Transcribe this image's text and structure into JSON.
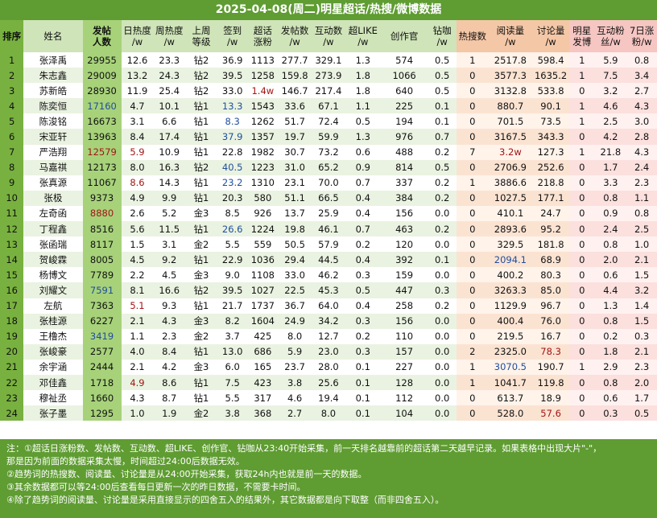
{
  "title": "2025-04-08(周二)明星超话/热搜/微博数据",
  "headers": [
    "排序",
    "姓名",
    "发帖\n人数",
    "日热度\n/w",
    "周热度\n/w",
    "上周\n等级",
    "签到\n/w",
    "超话\n涨粉",
    "发帖数\n/w",
    "互动数\n/w",
    "超LIKE\n/w",
    "创作官",
    "钻咖\n/w",
    "热搜数",
    "阅读量\n/w",
    "讨论量\n/w",
    "明星\n发博",
    "互动粉\n丝/w",
    "7日涨\n粉/w"
  ],
  "header_classes": [
    "h-rank",
    "h-name",
    "h-posts",
    "h-std",
    "h-std",
    "h-std",
    "h-std",
    "h-std",
    "h-std",
    "h-std",
    "h-std",
    "h-std",
    "h-std",
    "h-hot",
    "h-hot",
    "h-hot",
    "h-star",
    "h-star",
    "h-star"
  ],
  "column_widths": [
    28,
    70,
    46,
    38,
    38,
    38,
    36,
    36,
    40,
    40,
    42,
    56,
    34,
    38,
    52,
    44,
    30,
    38,
    36
  ],
  "rows": [
    [
      "1",
      "张泽禹",
      "29955",
      "12.6",
      "23.3",
      "钻2",
      "36.9",
      "1113",
      "277.7",
      "329.1",
      "1.3",
      "574",
      "0.5",
      "1",
      "2517.8",
      "598.4",
      "1",
      "5.9",
      "0.8"
    ],
    [
      "2",
      "朱志鑫",
      "29009",
      "13.2",
      "24.3",
      "钻2",
      "39.5",
      "1258",
      "159.8",
      "273.9",
      "1.8",
      "1066",
      "0.5",
      "0",
      "3577.3",
      "1635.2",
      "1",
      "7.5",
      "3.4"
    ],
    [
      "3",
      "苏新皓",
      "28930",
      "11.9",
      "25.4",
      "钻2",
      "33.0",
      "1.4w",
      "146.7",
      "217.4",
      "1.8",
      "640",
      "0.5",
      "0",
      "3132.8",
      "533.8",
      "0",
      "3.2",
      "2.7"
    ],
    [
      "4",
      "陈奕恒",
      "17160",
      "4.7",
      "10.1",
      "钻1",
      "13.3",
      "1543",
      "33.6",
      "67.1",
      "1.1",
      "225",
      "0.1",
      "0",
      "880.7",
      "90.1",
      "1",
      "4.6",
      "4.3"
    ],
    [
      "5",
      "陈浚铭",
      "16673",
      "3.1",
      "6.6",
      "钻1",
      "8.3",
      "1262",
      "51.7",
      "72.4",
      "0.5",
      "194",
      "0.1",
      "0",
      "701.5",
      "73.5",
      "1",
      "2.5",
      "3.0"
    ],
    [
      "6",
      "宋亚轩",
      "13963",
      "8.4",
      "17.4",
      "钻1",
      "37.9",
      "1357",
      "19.7",
      "59.9",
      "1.3",
      "976",
      "0.7",
      "0",
      "3167.5",
      "343.3",
      "0",
      "4.2",
      "2.8"
    ],
    [
      "7",
      "严浩翔",
      "12579",
      "5.9",
      "10.9",
      "钻1",
      "22.8",
      "1982",
      "30.7",
      "73.2",
      "0.6",
      "488",
      "0.2",
      "7",
      "3.2w",
      "127.3",
      "1",
      "21.8",
      "4.3"
    ],
    [
      "8",
      "马嘉祺",
      "12173",
      "8.0",
      "16.3",
      "钻2",
      "40.5",
      "1223",
      "31.0",
      "65.2",
      "0.9",
      "814",
      "0.5",
      "0",
      "2706.9",
      "252.6",
      "0",
      "1.7",
      "2.4"
    ],
    [
      "9",
      "张真源",
      "11067",
      "8.6",
      "14.3",
      "钻1",
      "23.2",
      "1310",
      "23.1",
      "70.0",
      "0.7",
      "337",
      "0.2",
      "1",
      "3886.6",
      "218.8",
      "0",
      "3.3",
      "2.3"
    ],
    [
      "10",
      "张极",
      "9373",
      "4.9",
      "9.9",
      "钻1",
      "20.3",
      "580",
      "51.1",
      "66.5",
      "0.4",
      "384",
      "0.2",
      "0",
      "1027.5",
      "177.1",
      "0",
      "0.8",
      "1.1"
    ],
    [
      "11",
      "左奇函",
      "8880",
      "2.6",
      "5.2",
      "金3",
      "8.5",
      "926",
      "13.7",
      "25.9",
      "0.4",
      "156",
      "0.0",
      "0",
      "410.1",
      "24.7",
      "0",
      "0.9",
      "0.8"
    ],
    [
      "12",
      "丁程鑫",
      "8516",
      "5.6",
      "11.5",
      "钻1",
      "26.6",
      "1224",
      "19.8",
      "46.1",
      "0.7",
      "463",
      "0.2",
      "0",
      "2893.6",
      "95.2",
      "0",
      "2.4",
      "2.5"
    ],
    [
      "13",
      "张函瑞",
      "8117",
      "1.5",
      "3.1",
      "金2",
      "5.5",
      "559",
      "50.5",
      "57.9",
      "0.2",
      "120",
      "0.0",
      "0",
      "329.5",
      "181.8",
      "0",
      "0.8",
      "1.0"
    ],
    [
      "14",
      "贺峻霖",
      "8005",
      "4.5",
      "9.2",
      "钻1",
      "22.9",
      "1036",
      "29.4",
      "44.5",
      "0.4",
      "392",
      "0.1",
      "0",
      "2094.1",
      "68.9",
      "0",
      "2.0",
      "2.1"
    ],
    [
      "15",
      "杨博文",
      "7789",
      "2.2",
      "4.5",
      "金3",
      "9.0",
      "1108",
      "33.0",
      "46.2",
      "0.3",
      "159",
      "0.0",
      "0",
      "400.2",
      "80.3",
      "0",
      "0.6",
      "1.5"
    ],
    [
      "16",
      "刘耀文",
      "7591",
      "8.1",
      "16.6",
      "钻2",
      "39.5",
      "1027",
      "22.5",
      "45.3",
      "0.5",
      "447",
      "0.3",
      "0",
      "3263.3",
      "85.0",
      "0",
      "4.4",
      "3.2"
    ],
    [
      "17",
      "左航",
      "7363",
      "5.1",
      "9.3",
      "钻1",
      "21.7",
      "1737",
      "36.7",
      "64.0",
      "0.4",
      "258",
      "0.2",
      "0",
      "1129.9",
      "96.7",
      "0",
      "1.3",
      "1.4"
    ],
    [
      "18",
      "张桂源",
      "6227",
      "2.1",
      "4.3",
      "金3",
      "8.2",
      "1604",
      "24.9",
      "34.2",
      "0.3",
      "156",
      "0.0",
      "0",
      "400.4",
      "76.0",
      "0",
      "0.8",
      "1.5"
    ],
    [
      "19",
      "王橹杰",
      "3419",
      "1.1",
      "2.3",
      "金2",
      "3.7",
      "425",
      "8.0",
      "12.7",
      "0.2",
      "110",
      "0.0",
      "0",
      "219.5",
      "16.7",
      "0",
      "0.2",
      "0.3"
    ],
    [
      "20",
      "张峻豪",
      "2577",
      "4.0",
      "8.4",
      "钻1",
      "13.0",
      "686",
      "5.9",
      "23.0",
      "0.3",
      "157",
      "0.0",
      "2",
      "2325.0",
      "78.3",
      "0",
      "1.8",
      "2.1"
    ],
    [
      "21",
      "余宇涵",
      "2444",
      "2.1",
      "4.2",
      "金3",
      "6.0",
      "165",
      "23.7",
      "28.0",
      "0.1",
      "227",
      "0.0",
      "1",
      "3070.5",
      "190.7",
      "1",
      "2.9",
      "2.3"
    ],
    [
      "22",
      "邓佳鑫",
      "1718",
      "4.9",
      "8.6",
      "钻1",
      "7.5",
      "423",
      "3.8",
      "25.6",
      "0.1",
      "128",
      "0.0",
      "1",
      "1041.7",
      "119.8",
      "0",
      "0.8",
      "2.0"
    ],
    [
      "23",
      "穆祉丞",
      "1660",
      "4.3",
      "8.7",
      "钻1",
      "5.5",
      "317",
      "4.6",
      "19.4",
      "0.1",
      "112",
      "0.0",
      "0",
      "613.7",
      "18.9",
      "0",
      "0.6",
      "1.7"
    ],
    [
      "24",
      "张子墨",
      "1295",
      "1.0",
      "1.9",
      "金2",
      "3.8",
      "368",
      "2.7",
      "8.0",
      "0.1",
      "104",
      "0.0",
      "0",
      "528.0",
      "57.6",
      "0",
      "0.3",
      "0.5"
    ]
  ],
  "highlight_blue": [
    [
      "4",
      2
    ],
    [
      "4",
      6
    ],
    [
      "6",
      6
    ],
    [
      "8",
      6
    ],
    [
      "9",
      6
    ],
    [
      "12",
      6
    ],
    [
      "16",
      2
    ],
    [
      "19",
      2
    ],
    [
      "1",
      6
    ],
    [
      "2",
      6
    ],
    [
      "3",
      6
    ],
    [
      "5",
      6
    ],
    [
      "14",
      14
    ],
    [
      "21",
      14
    ]
  ],
  "highlight_red": [
    [
      "3",
      7
    ],
    [
      "7",
      2
    ],
    [
      "7",
      3
    ],
    [
      "7",
      14
    ],
    [
      "9",
      3
    ],
    [
      "11",
      2
    ],
    [
      "17",
      3
    ],
    [
      "20",
      15
    ],
    [
      "22",
      3
    ],
    [
      "24",
      15
    ]
  ],
  "notes": [
    "注：①超话日涨粉数、发帖数、互动数、超LIKE、创作官、钻咖从23:40开始采集，前一天排名越靠前的超话第二天越早记录。如果表格中出现大片\"-\"，",
    "    那是因为前面的数据采集太慢，时间超过24:00后数据无效。",
    "    ②趋势词的热搜数、阅读量、讨论量是从24:00开始采集，获取24h内也就是前一天的数据。",
    "    ③其余数据都可以等24:00后查看每日更新一次的昨日数据，不需要卡时间。",
    "    ④除了趋势词的阅读量、讨论量是采用直接显示的四舍五入的结果外，其它数据都是向下取整（而非四舍五入）。"
  ]
}
